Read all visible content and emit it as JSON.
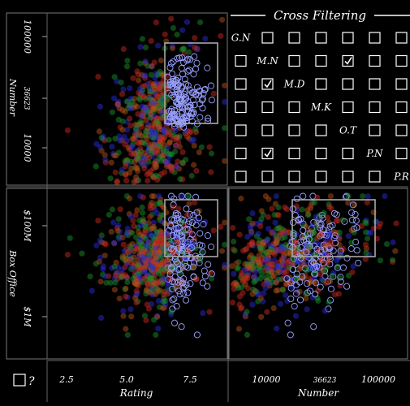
{
  "title": "Cross Filtering",
  "help_label": "?",
  "variables": [
    "G.N",
    "M.N",
    "M.D",
    "M.K",
    "O.T",
    "P.N",
    "P.R"
  ],
  "checked": [
    [
      1,
      4
    ],
    [
      2,
      1
    ],
    [
      5,
      1
    ]
  ],
  "series_colors": [
    "#c0281e",
    "#2a2ad0",
    "#1a8a2a",
    "#b05018"
  ],
  "chart_data": [
    {
      "type": "scatter",
      "panel": "Number vs Rating",
      "xlabel": "",
      "ylabel": "Number",
      "x_scale": "linear",
      "y_scale": "log",
      "yticks": [
        "10000",
        "36623",
        "100000"
      ],
      "ytick_values": [
        10000,
        36623,
        100000
      ],
      "brush": {
        "x": [
          6.6,
          8.4
        ],
        "y": [
          15000,
          70000
        ]
      }
    },
    {
      "type": "scatter",
      "panel": "Box Office vs Rating",
      "xlabel": "Rating",
      "ylabel": "Box Office",
      "x_scale": "linear",
      "y_scale": "log",
      "xticks": [
        "2.5",
        "5.0",
        "7.5"
      ],
      "xtick_values": [
        2.5,
        5.0,
        7.5
      ],
      "yticks": [
        "$1M",
        "$100M"
      ],
      "ytick_values": [
        1000000,
        100000000
      ],
      "brush": {
        "x": [
          6.6,
          8.4
        ],
        "y": [
          40000000,
          500000000
        ]
      }
    },
    {
      "type": "scatter",
      "panel": "Box Office vs Number",
      "xlabel": "Number",
      "ylabel": "",
      "x_scale": "log",
      "y_scale": "log",
      "xticks": [
        "10000",
        "36623",
        "100000"
      ],
      "xtick_values": [
        10000,
        36623,
        100000
      ],
      "brush": {
        "x": [
          15000,
          70000
        ],
        "y": [
          40000000,
          500000000
        ]
      }
    }
  ]
}
